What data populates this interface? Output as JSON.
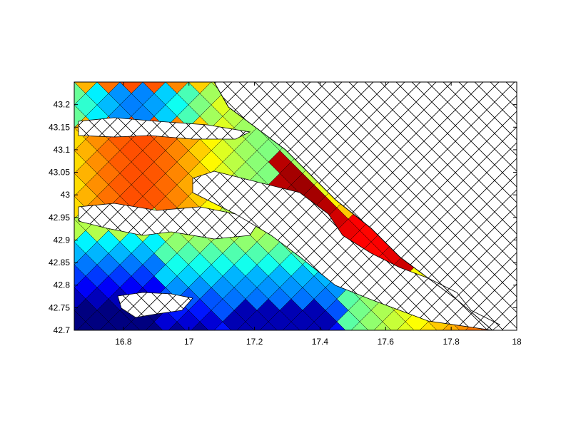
{
  "chart_data": {
    "type": "heatmap",
    "title": "",
    "xlabel": "",
    "ylabel": "",
    "xlim": [
      16.65,
      18.0
    ],
    "ylim": [
      42.7,
      43.25
    ],
    "grid": false,
    "colormap": "jet",
    "x_ticks": [
      "16.8",
      "17",
      "17.2",
      "17.4",
      "17.6",
      "17.8",
      "18"
    ],
    "x_tick_values": [
      16.8,
      17.0,
      17.2,
      17.4,
      17.6,
      17.8,
      18.0
    ],
    "y_ticks": [
      "42.7",
      "42.75",
      "42.8",
      "42.85",
      "42.9",
      "42.95",
      "43",
      "43.05",
      "43.1",
      "43.15",
      "43.2"
    ],
    "y_tick_values": [
      42.7,
      42.75,
      42.8,
      42.85,
      42.9,
      42.95,
      43.0,
      43.05,
      43.1,
      43.15,
      43.2
    ],
    "masked_region_style": "cross-hatched",
    "coastline_color": "#000000"
  }
}
